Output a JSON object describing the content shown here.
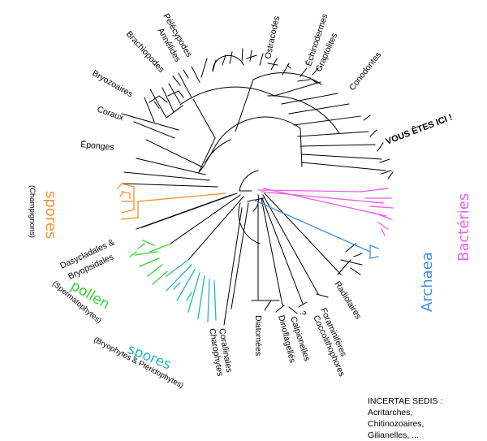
{
  "labels": {
    "ostracodes": "Ostracodes",
    "echinodermes": "Échinodermes",
    "graptolites": "Graptolites",
    "conodontes": "Conodontes",
    "vous_etes_ici": "VOUS ÊTES ICI !",
    "pelecypodes": "Pélécypodes",
    "annelides": "Annélides",
    "brachiopodes": "Brachiopodes",
    "bryozoaires": "Bryozoaires",
    "coraux": "Coraux",
    "eponges": "Éponges",
    "spores_fungi": "spores",
    "champignons": "(Champignons)",
    "dasycladales": "Dasycladales &",
    "bryopsidales": "Bryopsidales",
    "pollen": "pollen",
    "spermatophytes": "(Spermatophytes)",
    "spores_plants": "spores",
    "bryophytes": "(Bryophytes & Ptéridophytes)",
    "charophytes": "Charophytes",
    "corallinales": "Corallinales",
    "diatomees": "Diatomées",
    "dinoflagelles": "Dinoflagellés",
    "question": "?",
    "calpionelles": "Calpionelles",
    "foraminiferes": "Foraminifères",
    "coccolithophores": "Coccolithophores",
    "radiolaires": "Radiolaires",
    "archaea": "Archaea",
    "bacteries": "Bactéries"
  },
  "incertae_sedis": {
    "title": "INCERTAE SEDIS :",
    "line1": "Acritarches,",
    "line2": "Chitinozoaires,",
    "line3": "Gilianelles, ..."
  },
  "colors": {
    "black": "#000000",
    "fungi_orange": "#f7922e",
    "spermatophyte_green": "#2fd82f",
    "bryophyte_cyan": "#1fb6c4",
    "archaea_blue": "#3d8ee6",
    "bacteria_pink": "#ee5ce8"
  }
}
